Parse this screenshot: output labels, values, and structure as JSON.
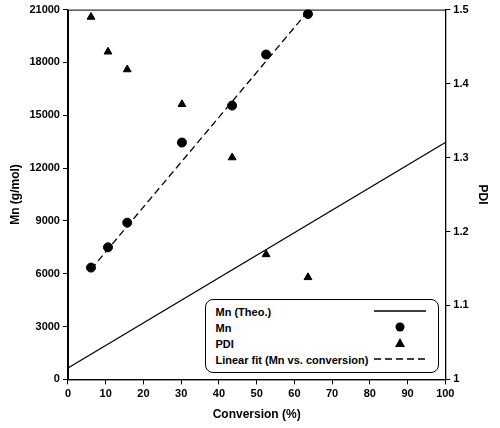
{
  "chart_data": {
    "type": "scatter",
    "x_label": "Conversion (%)",
    "y_label": "Mn (g/mol)",
    "y2_label": "PDI",
    "xlim": [
      0,
      100
    ],
    "xticks": [
      0,
      10,
      20,
      30,
      40,
      50,
      60,
      70,
      80,
      90,
      100
    ],
    "ylim": [
      0,
      21000
    ],
    "yticks": [
      0,
      3000,
      6000,
      9000,
      12000,
      15000,
      18000,
      21000
    ],
    "y2lim": [
      1,
      1.5
    ],
    "y2ticks": [
      1,
      1.1,
      1.2,
      1.3,
      1.4,
      1.5
    ],
    "grid": false,
    "legend": "lower right",
    "series": [
      {
        "name": "Mn (Theo.)",
        "type": "line",
        "color": "#000000",
        "line_style": "solid",
        "marker": "none",
        "x": [
          0,
          100
        ],
        "values": [
          650,
          13450
        ]
      },
      {
        "name": "Mn",
        "type": "scatter",
        "color": "#000000",
        "marker": "circle",
        "x": [
          6.1,
          10.6,
          15.7,
          30.2,
          43.5,
          52.5,
          63.6
        ],
        "values": [
          6350,
          7500,
          8900,
          13450,
          15550,
          18450,
          20750
        ]
      },
      {
        "name": "PDI",
        "type": "scatter",
        "color": "#000000",
        "marker": "triangle",
        "axis": "y2",
        "x": [
          6.1,
          10.6,
          15.7,
          30.2,
          43.5,
          52.5,
          63.6
        ],
        "values": [
          1.49,
          1.443,
          1.419,
          1.372,
          1.3,
          1.169,
          1.138
        ]
      },
      {
        "name": "Linear fit (Mn vs. conversion)",
        "type": "line",
        "color": "#000000",
        "line_style": "dashed",
        "marker": "none",
        "x": [
          6.1,
          63.6
        ],
        "values": [
          6250,
          20900
        ]
      }
    ]
  }
}
